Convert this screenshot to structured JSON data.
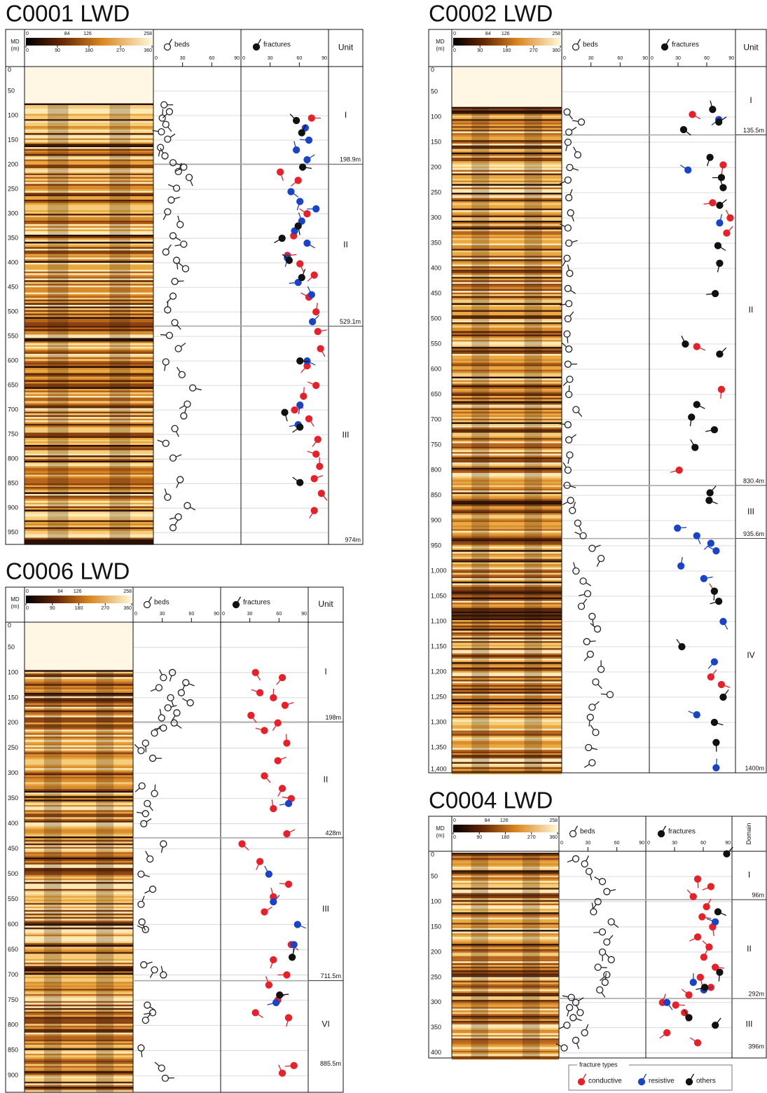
{
  "legend": {
    "title": "fracture types",
    "items": [
      {
        "name": "conductive",
        "color": "#e8202a"
      },
      {
        "name": "resistive",
        "color": "#1a44c8"
      },
      {
        "name": "others",
        "color": "#111111"
      }
    ]
  },
  "wells": [
    {
      "title": "C0001 LWD",
      "md_label": "MD",
      "md_unit": "(m)",
      "depth_lim": [
        0,
        974
      ],
      "depth_ticks": [
        0,
        50,
        100,
        150,
        200,
        250,
        300,
        350,
        400,
        450,
        500,
        550,
        600,
        650,
        700,
        750,
        800,
        850,
        900,
        950
      ],
      "amplitude_ticks": [
        0,
        84,
        126,
        258
      ],
      "azimuth_ticks": [
        0,
        90,
        180,
        270,
        360
      ],
      "beds_label": "beds",
      "fractures_label": "fractures",
      "dip_ticks": [
        0,
        30,
        60,
        90
      ],
      "unit_header": "Unit",
      "units": [
        "I",
        "II",
        "III"
      ],
      "boundaries": [
        {
          "value": 198.9,
          "label": "198.9m"
        },
        {
          "value": 529.1,
          "label": "529.1m"
        },
        {
          "value": 974,
          "label": "974m"
        }
      ],
      "beds": {
        "depths": [
          78,
          92,
          105,
          118,
          133,
          148,
          165,
          182,
          196,
          205,
          214,
          226,
          248,
          272,
          296,
          322,
          345,
          362,
          378,
          395,
          412,
          438,
          468,
          496,
          522,
          548,
          575,
          602,
          628,
          655,
          688,
          712,
          738,
          768,
          798,
          842,
          878,
          895,
          918,
          940
        ],
        "dips": [
          8,
          14,
          6,
          10,
          5,
          12,
          4,
          9,
          18,
          30,
          24,
          36,
          22,
          16,
          12,
          26,
          18,
          30,
          10,
          22,
          32,
          20,
          18,
          12,
          20,
          14,
          24,
          10,
          28,
          40,
          34,
          30,
          20,
          10,
          18,
          26,
          12,
          34,
          24,
          18
        ]
      },
      "fractures": [
        {
          "depths": [
            105,
            215,
            232,
            300,
            345,
            385,
            402,
            425,
            470,
            500,
            540,
            575,
            610,
            650,
            672,
            700,
            718,
            760,
            790,
            815,
            840,
            870,
            905
          ],
          "dips": [
            75,
            40,
            60,
            70,
            55,
            48,
            62,
            78,
            72,
            80,
            82,
            85,
            70,
            80,
            66,
            56,
            72,
            82,
            80,
            84,
            78,
            86,
            78
          ]
        },
        {
          "depths": [
            125,
            150,
            170,
            190,
            255,
            275,
            290,
            315,
            335,
            360,
            390,
            440,
            465,
            520,
            600,
            690,
            730
          ],
          "dips": [
            68,
            72,
            58,
            70,
            52,
            62,
            80,
            64,
            56,
            70,
            48,
            60,
            75,
            76,
            70,
            62,
            60
          ]
        },
        {
          "depths": [
            110,
            135,
            205,
            325,
            350,
            395,
            430,
            600,
            705,
            735,
            848
          ],
          "dips": [
            58,
            64,
            65,
            60,
            42,
            50,
            64,
            62,
            45,
            62,
            62
          ]
        }
      ]
    },
    {
      "title": "C0002 LWD",
      "md_label": "MD",
      "md_unit": "(m)",
      "depth_lim": [
        0,
        1400
      ],
      "depth_ticks": [
        0,
        50,
        100,
        150,
        200,
        250,
        300,
        350,
        400,
        450,
        500,
        550,
        600,
        650,
        700,
        750,
        800,
        850,
        900,
        950,
        {
          "value": 1000,
          "label": "1,000"
        },
        {
          "value": 1050,
          "label": "1,050"
        },
        {
          "value": 1100,
          "label": "1,100"
        },
        {
          "value": 1150,
          "label": "1,150"
        },
        {
          "value": 1200,
          "label": "1,200"
        },
        {
          "value": 1250,
          "label": "1,250"
        },
        {
          "value": 1300,
          "label": "1,300"
        },
        {
          "value": 1350,
          "label": "1,350"
        },
        {
          "value": 1400,
          "label": "1,400"
        }
      ],
      "amplitude_ticks": [
        0,
        84,
        126,
        258
      ],
      "azimuth_ticks": [
        0,
        90,
        180,
        270,
        360
      ],
      "beds_label": "beds",
      "fractures_label": "fractures",
      "dip_ticks": [
        0,
        30,
        60,
        90
      ],
      "unit_header": "Unit",
      "units": [
        "I",
        "II",
        "III",
        "IV"
      ],
      "boundaries": [
        {
          "value": 135.5,
          "label": "135.5m"
        },
        {
          "value": 830.4,
          "label": "830.4m"
        },
        {
          "value": 935.6,
          "label": "935.6m"
        },
        {
          "value": 1400,
          "label": "1400m"
        }
      ],
      "beds": {
        "depths": [
          90,
          110,
          130,
          150,
          175,
          200,
          225,
          260,
          290,
          320,
          350,
          380,
          410,
          440,
          470,
          500,
          530,
          560,
          590,
          620,
          650,
          680,
          710,
          740,
          770,
          800,
          830,
          860,
          880,
          905,
          930,
          955,
          975,
          1000,
          1020,
          1045,
          1070,
          1090,
          1115,
          1140,
          1165,
          1195,
          1220,
          1245,
          1270,
          1290,
          1320,
          1350,
          1380
        ],
        "dips": [
          2,
          18,
          4,
          3,
          14,
          5,
          3,
          4,
          6,
          3,
          4,
          2,
          5,
          3,
          4,
          3,
          2,
          4,
          3,
          5,
          4,
          12,
          3,
          4,
          5,
          3,
          2,
          6,
          8,
          14,
          20,
          30,
          40,
          12,
          20,
          25,
          18,
          30,
          36,
          24,
          28,
          40,
          34,
          50,
          30,
          28,
          34,
          26,
          30
        ]
      },
      "fractures": [
        {
          "depths": [
            95,
            195,
            270,
            300,
            330,
            555,
            640,
            800,
            1040,
            1210,
            1225
          ],
          "dips": [
            45,
            80,
            68,
            88,
            84,
            50,
            78,
            30,
            70,
            66,
            78
          ]
        },
        {
          "depths": [
            105,
            205,
            310,
            915,
            930,
            945,
            960,
            990,
            1015,
            1100,
            1180,
            1285,
            1390
          ],
          "dips": [
            75,
            40,
            76,
            28,
            50,
            66,
            72,
            32,
            58,
            80,
            70,
            50,
            72
          ]
        },
        {
          "depths": [
            85,
            110,
            125,
            180,
            220,
            240,
            275,
            355,
            390,
            450,
            550,
            570,
            670,
            695,
            720,
            755,
            845,
            860,
            1040,
            1060,
            1150,
            1250,
            1300,
            1340
          ],
          "dips": [
            68,
            75,
            35,
            65,
            78,
            80,
            76,
            74,
            76,
            71,
            37,
            76,
            50,
            44,
            70,
            48,
            65,
            64,
            70,
            75,
            33,
            80,
            70,
            72
          ]
        }
      ]
    },
    {
      "title": "C0006 LWD",
      "md_label": "MD",
      "md_unit": "(m)",
      "depth_lim": [
        0,
        933
      ],
      "depth_ticks": [
        0,
        50,
        100,
        150,
        200,
        250,
        300,
        350,
        400,
        450,
        500,
        550,
        600,
        650,
        700,
        750,
        800,
        850,
        900
      ],
      "amplitude_ticks": [
        0,
        84,
        126,
        258
      ],
      "azimuth_ticks": [
        0,
        90,
        180,
        270,
        360
      ],
      "beds_label": "beds",
      "fractures_label": "fractures",
      "dip_ticks": [
        0,
        30,
        60,
        90
      ],
      "unit_header": "Unit",
      "units": [
        "I",
        "II",
        "III",
        "VI"
      ],
      "boundaries": [
        {
          "value": 198,
          "label": "198m"
        },
        {
          "value": 428,
          "label": "428m"
        },
        {
          "value": 711.5,
          "label": "711.5m"
        },
        {
          "value": 885.5,
          "label": "885.5m"
        }
      ],
      "beds": {
        "depths": [
          100,
          110,
          120,
          130,
          140,
          150,
          160,
          170,
          180,
          190,
          200,
          210,
          220,
          240,
          255,
          270,
          325,
          340,
          360,
          380,
          400,
          440,
          470,
          500,
          530,
          560,
          595,
          610,
          680,
          690,
          700,
          760,
          775,
          790,
          845,
          885,
          905
        ],
        "dips": [
          40,
          30,
          55,
          25,
          50,
          38,
          60,
          35,
          45,
          28,
          42,
          30,
          20,
          10,
          5,
          18,
          6,
          20,
          12,
          10,
          8,
          30,
          15,
          5,
          18,
          5,
          6,
          10,
          8,
          20,
          30,
          12,
          18,
          10,
          5,
          28,
          32
        ]
      },
      "fractures": [
        {
          "depths": [
            100,
            110,
            140,
            150,
            165,
            185,
            200,
            215,
            240,
            275,
            305,
            330,
            350,
            370,
            420,
            440,
            475,
            520,
            545,
            575,
            640,
            670,
            700,
            720,
            750,
            775,
            785,
            880,
            895
          ],
          "dips": [
            35,
            65,
            40,
            55,
            68,
            30,
            60,
            45,
            70,
            60,
            45,
            65,
            75,
            55,
            70,
            20,
            40,
            72,
            55,
            45,
            75,
            55,
            70,
            50,
            60,
            35,
            72,
            78,
            65
          ]
        },
        {
          "depths": [
            360,
            500,
            555,
            600,
            640,
            755
          ],
          "dips": [
            72,
            50,
            55,
            82,
            78,
            58
          ]
        },
        {
          "depths": [
            665,
            740
          ],
          "dips": [
            76,
            62
          ]
        }
      ]
    },
    {
      "title": "C0004 LWD",
      "md_label": "MD",
      "md_unit": "(m)",
      "depth_lim": [
        0,
        410
      ],
      "depth_ticks": [
        0,
        50,
        100,
        150,
        200,
        250,
        300,
        350,
        400
      ],
      "amplitude_ticks": [
        0,
        84,
        126,
        258
      ],
      "azimuth_ticks": [
        0,
        90,
        180,
        270,
        360
      ],
      "beds_label": "beds",
      "fractures_label": "fractures",
      "dip_ticks": [
        0,
        30,
        60,
        90
      ],
      "unit_header": "Domain",
      "units": [
        "I",
        "II",
        "III"
      ],
      "boundaries": [
        {
          "value": 96,
          "label": "96m"
        },
        {
          "value": 292,
          "label": "292m"
        },
        {
          "value": 396,
          "label": "396m"
        }
      ],
      "beds": {
        "depths": [
          15,
          25,
          40,
          60,
          80,
          100,
          120,
          140,
          160,
          180,
          200,
          215,
          230,
          245,
          260,
          275,
          290,
          300,
          310,
          320,
          330,
          345,
          360,
          375,
          390
        ],
        "dips": [
          15,
          25,
          30,
          45,
          50,
          40,
          35,
          55,
          45,
          50,
          45,
          55,
          40,
          50,
          48,
          42,
          10,
          15,
          8,
          20,
          12,
          5,
          25,
          15,
          2
        ]
      },
      "fractures": [
        {
          "depths": [
            55,
            70,
            90,
            110,
            130,
            150,
            170,
            190,
            210,
            230,
            250,
            270,
            285,
            300,
            305,
            320,
            360,
            380
          ],
          "dips": [
            55,
            70,
            50,
            65,
            60,
            72,
            55,
            68,
            62,
            75,
            58,
            70,
            45,
            15,
            30,
            40,
            20,
            55
          ]
        },
        {
          "depths": [
            140,
            260,
            275,
            300
          ],
          "dips": [
            75,
            50,
            62,
            20
          ]
        },
        {
          "depths": [
            5,
            120,
            240,
            270,
            330,
            345
          ],
          "dips": [
            88,
            78,
            80,
            63,
            45,
            75
          ]
        }
      ]
    }
  ]
}
